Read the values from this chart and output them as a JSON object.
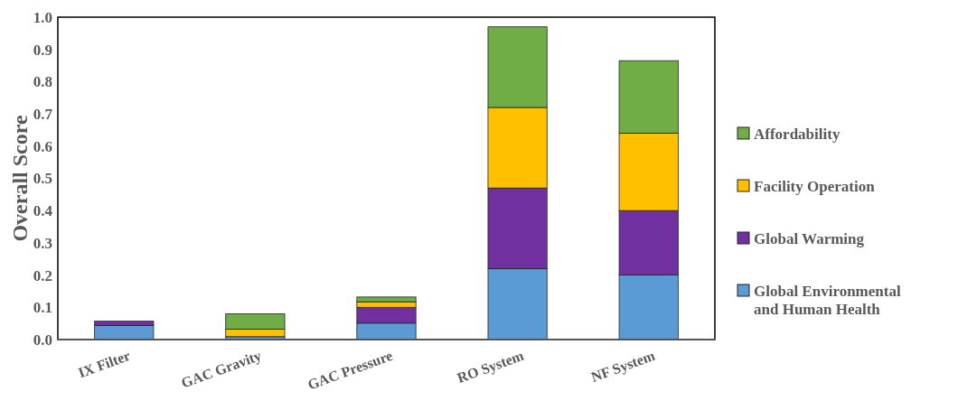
{
  "chart_data": {
    "type": "bar",
    "stacked": true,
    "ylabel": "Overall Score",
    "categories": [
      "IX Filter",
      "GAC Gravity",
      "GAC Pressure",
      "RO System",
      "NF System"
    ],
    "series": [
      {
        "name": "Global Environmental and Human Health",
        "color": "#5b9bd5",
        "values": [
          0.044,
          0.009,
          0.051,
          0.22,
          0.2
        ]
      },
      {
        "name": "Global Warming",
        "color": "#7030a0",
        "values": [
          0.013,
          0,
          0.049,
          0.25,
          0.2
        ]
      },
      {
        "name": "Facility Operation",
        "color": "#ffc000",
        "values": [
          0,
          0.023,
          0.017,
          0.25,
          0.24
        ]
      },
      {
        "name": "Affordability",
        "color": "#70ad47",
        "values": [
          0,
          0.048,
          0.015,
          0.25,
          0.225
        ]
      }
    ],
    "ylim": [
      0,
      1
    ],
    "yticks": [
      {
        "value": 0,
        "label": "0.0"
      },
      {
        "value": 0.1,
        "label": "0.1"
      },
      {
        "value": 0.2,
        "label": "0.2"
      },
      {
        "value": 0.3,
        "label": "0.3"
      },
      {
        "value": 0.4,
        "label": "0.4"
      },
      {
        "value": 0.5,
        "label": "0.5"
      },
      {
        "value": 0.6,
        "label": "0.6"
      },
      {
        "value": 0.7,
        "label": "0.7"
      },
      {
        "value": 0.8,
        "label": "0.8"
      },
      {
        "value": 0.9,
        "label": "0.9"
      },
      {
        "value": 1,
        "label": "1.0"
      }
    ],
    "grid": false,
    "legend": "right"
  }
}
